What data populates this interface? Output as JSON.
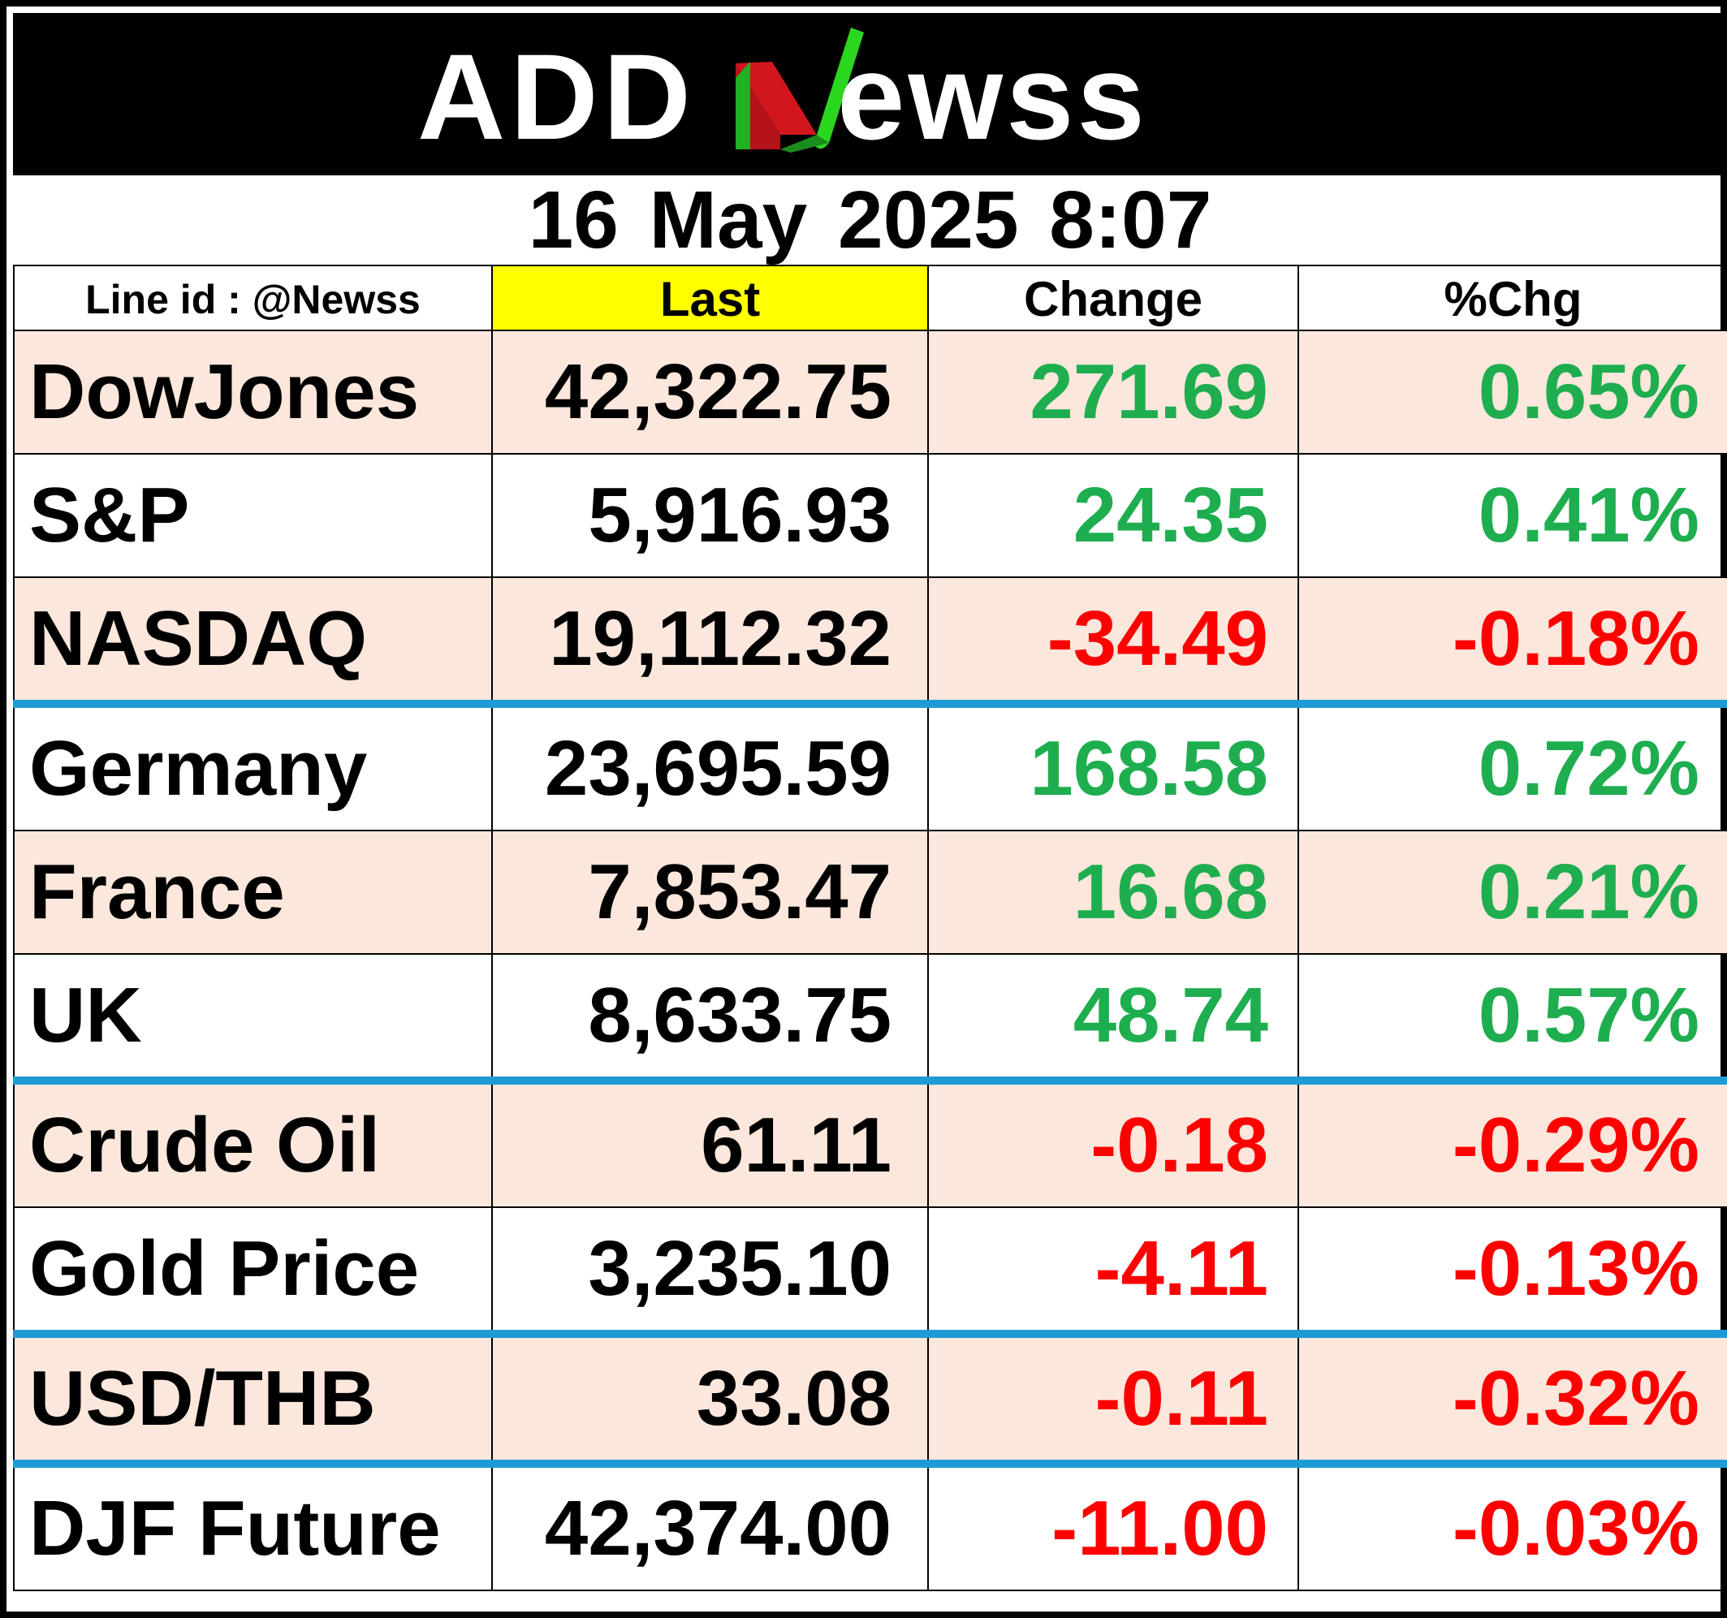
{
  "logo": {
    "text_left": "ADD",
    "text_n": "N",
    "text_right": "ewss",
    "colors": {
      "background": "#000000",
      "text": "#ffffff",
      "n_green": "#1fdc2a",
      "n_red": "#c0141a"
    }
  },
  "date_time": "16 May 2025  8:07",
  "header": {
    "line_id": "Line id : @Newss",
    "last": "Last",
    "change": "Change",
    "pct_change": "%Chg"
  },
  "rows": [
    {
      "name": "DowJones",
      "last": "42,322.75",
      "change": "271.69",
      "pct": "0.65%",
      "direction": "up",
      "shaded": true,
      "separator_above": false
    },
    {
      "name": "S&P",
      "last": "5,916.93",
      "change": "24.35",
      "pct": "0.41%",
      "direction": "up",
      "shaded": false,
      "separator_above": false
    },
    {
      "name": "NASDAQ",
      "last": "19,112.32",
      "change": "-34.49",
      "pct": "-0.18%",
      "direction": "down",
      "shaded": true,
      "separator_above": false
    },
    {
      "name": "Germany",
      "last": "23,695.59",
      "change": "168.58",
      "pct": "0.72%",
      "direction": "up",
      "shaded": false,
      "separator_above": true
    },
    {
      "name": "France",
      "last": "7,853.47",
      "change": "16.68",
      "pct": "0.21%",
      "direction": "up",
      "shaded": true,
      "separator_above": false
    },
    {
      "name": "UK",
      "last": "8,633.75",
      "change": "48.74",
      "pct": "0.57%",
      "direction": "up",
      "shaded": false,
      "separator_above": false
    },
    {
      "name": "Crude Oil",
      "last": "61.11",
      "change": "-0.18",
      "pct": "-0.29%",
      "direction": "down",
      "shaded": true,
      "separator_above": true
    },
    {
      "name": "Gold Price",
      "last": "3,235.10",
      "change": "-4.11",
      "pct": "-0.13%",
      "direction": "down",
      "shaded": false,
      "separator_above": false
    },
    {
      "name": "USD/THB",
      "last": "33.08",
      "change": "-0.11",
      "pct": "-0.32%",
      "direction": "down",
      "shaded": true,
      "separator_above": true
    },
    {
      "name": "DJF Future",
      "last": "42,374.00",
      "change": "-11.00",
      "pct": "-0.03%",
      "direction": "down",
      "shaded": false,
      "separator_above": true
    }
  ],
  "colors": {
    "up": "#1fae4f",
    "down": "#ff0000",
    "row_shade": "#fbe7dc",
    "separator": "#1e9bd7",
    "last_header": "#ffff00"
  }
}
